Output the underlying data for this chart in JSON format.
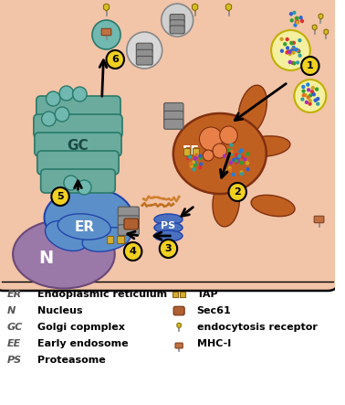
{
  "bg_color": "#f2c4a8",
  "white": "#ffffff",
  "cell_border": "#000000",
  "golgi_color": "#6aab9e",
  "golgi_ec": "#2a7a6a",
  "er_color": "#5b8fc9",
  "er_ec": "#2244aa",
  "nucleus_color": "#9a78a8",
  "nucleus_ec": "#6a4878",
  "endosome_color": "#c06020",
  "endosome_ec": "#803010",
  "proteasome_color": "#4a70c0",
  "proteasome_ec": "#2244aa",
  "vesicle_teal": "#70b8b0",
  "vesicle_teal_ec": "#2a7a6a",
  "number_bg": "#f0d020",
  "grey": "#909090",
  "grey_ec": "#555555",
  "tap_color": "#d4b030",
  "tap_ec": "#8a6010",
  "sec61_color": "#b06030",
  "sec61_ec": "#703010",
  "mhc_color": "#c07040",
  "mhc_ec": "#804020",
  "endoc_rec_color": "#d4c020",
  "endoc_rec_ec": "#8a7010",
  "peptide_colors": [
    "#e06020",
    "#d0a030",
    "#c04020",
    "#b08030"
  ],
  "dot_colors": [
    "#e03030",
    "#30a030",
    "#3060d0",
    "#d0a020",
    "#a030c0",
    "#30a0a0",
    "#e07020",
    "#2080e0"
  ],
  "legend_left": [
    [
      "ER",
      "Endoplasmic reticulum"
    ],
    [
      "N",
      "Nucleus"
    ],
    [
      "GC",
      "Golgi copmplex"
    ],
    [
      "EE",
      "Early endosome"
    ],
    [
      "PS",
      "Proteasome"
    ]
  ],
  "legend_right": [
    [
      "TAP",
      "TAP"
    ],
    [
      "Sec61",
      "Sec61"
    ],
    [
      "endocytosis_receptor",
      "endocytosis receptor"
    ],
    [
      "MHC-I",
      "MHC-I"
    ]
  ]
}
